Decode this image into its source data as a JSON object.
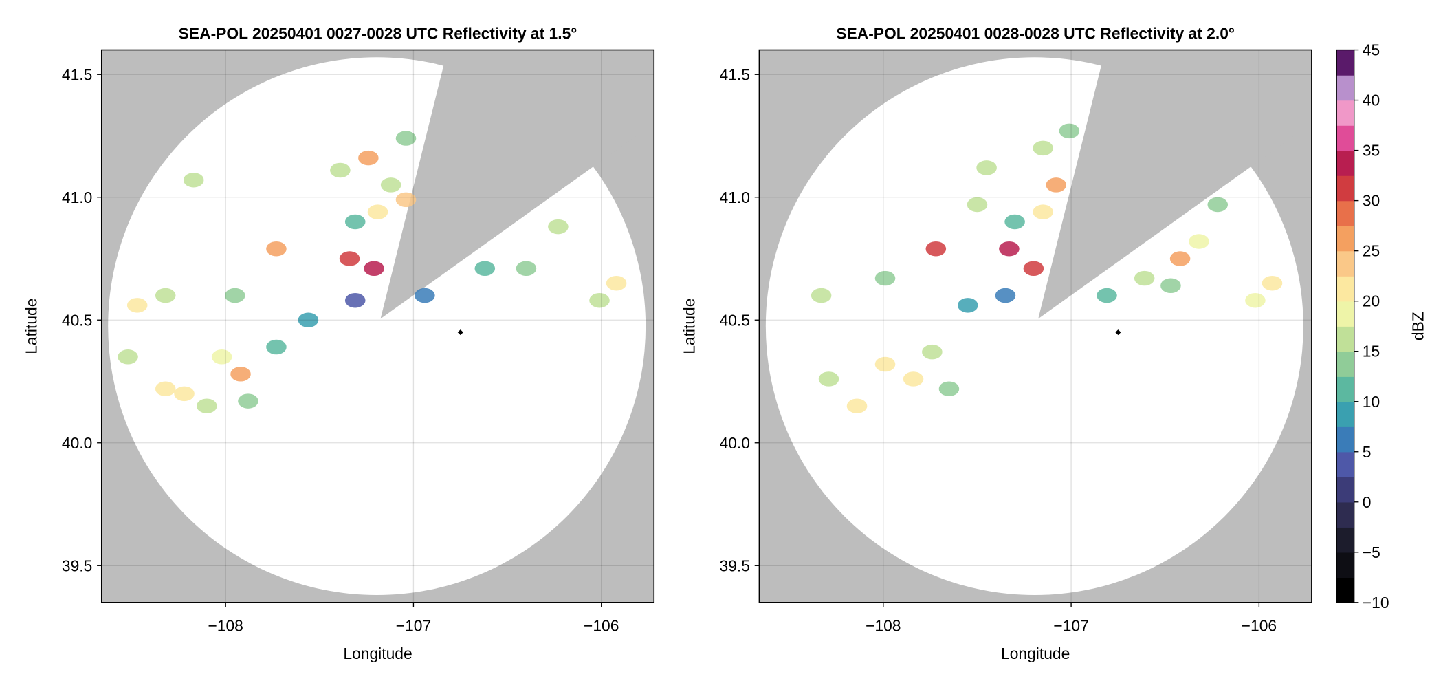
{
  "chart_data": [
    {
      "type": "scatter",
      "title": "SEA-POL 20250401 0027-0028 UTC Reflectivity at 1.5°",
      "xlabel": "Longitude",
      "ylabel": "Latitude",
      "xlim": [
        -108.66,
        -105.72
      ],
      "ylim": [
        39.35,
        41.6
      ],
      "xticks": [
        {
          "value": -108,
          "label": "−108"
        },
        {
          "value": -107,
          "label": "−107"
        },
        {
          "value": -106,
          "label": "−106"
        }
      ],
      "yticks": [
        39.5,
        {
          "value": 40,
          "label": "40.0"
        },
        40.5,
        {
          "value": 41,
          "label": "41.0"
        },
        41.5
      ],
      "grid": true,
      "site": [
        -106.75,
        40.45
      ],
      "x": [
        -108.52,
        -108.32,
        -108.22,
        -108.1,
        -108.02,
        -107.92,
        -107.88,
        -107.73,
        -108.32,
        -108.47,
        -108.17,
        -107.95,
        -107.73,
        -107.56,
        -107.39,
        -107.31,
        -107.24,
        -107.19,
        -107.12,
        -107.04,
        -107.34,
        -107.21,
        -107.31,
        -106.94,
        -106.4,
        -106.23,
        -106.01,
        -105.92,
        -106.62,
        -107.04
      ],
      "y": [
        40.35,
        40.22,
        40.2,
        40.15,
        40.35,
        40.28,
        40.17,
        40.39,
        40.6,
        40.56,
        41.07,
        40.6,
        40.79,
        40.5,
        41.11,
        40.9,
        41.16,
        40.94,
        41.05,
        41.24,
        40.75,
        40.71,
        40.58,
        40.6,
        40.71,
        40.88,
        40.58,
        40.65,
        40.71,
        40.99
      ],
      "values": [
        15,
        22,
        20,
        17,
        18,
        25,
        14,
        12,
        17,
        20,
        15,
        14,
        27,
        8,
        15,
        10,
        25,
        22,
        15,
        14,
        30,
        33,
        3,
        6,
        13,
        15,
        16,
        20,
        10,
        23
      ]
    },
    {
      "type": "scatter",
      "title": "SEA-POL 20250401 0028-0028 UTC Reflectivity at 2.0°",
      "xlabel": "Longitude",
      "ylabel": "Latitude",
      "xlim": [
        -108.66,
        -105.72
      ],
      "ylim": [
        39.35,
        41.6
      ],
      "xticks": [
        {
          "value": -108,
          "label": "−108"
        },
        {
          "value": -107,
          "label": "−107"
        },
        {
          "value": -106,
          "label": "−106"
        }
      ],
      "yticks": [
        39.5,
        {
          "value": 40,
          "label": "40.0"
        },
        40.5,
        {
          "value": 41,
          "label": "41.0"
        },
        41.5
      ],
      "grid": true,
      "site": [
        -106.75,
        40.45
      ],
      "x": [
        -108.29,
        -108.14,
        -107.99,
        -107.84,
        -107.74,
        -107.65,
        -108.33,
        -107.99,
        -107.72,
        -107.5,
        -107.45,
        -107.3,
        -107.33,
        -107.2,
        -107.15,
        -107.08,
        -107.15,
        -107.01,
        -107.35,
        -106.81,
        -106.61,
        -106.42,
        -106.32,
        -106.47,
        -106.22,
        -105.93,
        -106.02,
        -107.55
      ],
      "y": [
        40.26,
        40.15,
        40.32,
        40.26,
        40.37,
        40.22,
        40.6,
        40.67,
        40.79,
        40.97,
        41.12,
        40.9,
        40.79,
        40.71,
        40.94,
        41.05,
        41.2,
        41.27,
        40.6,
        40.6,
        40.67,
        40.75,
        40.82,
        40.64,
        40.97,
        40.65,
        40.58,
        40.56
      ],
      "values": [
        17,
        20,
        22,
        20,
        15,
        14,
        16,
        14,
        30,
        15,
        17,
        10,
        33,
        30,
        20,
        25,
        17,
        14,
        5,
        10,
        16,
        25,
        18,
        13,
        14,
        20,
        18,
        8
      ]
    },
    {
      "type": "colorbar",
      "label": "dBZ",
      "ylim": [
        -10,
        45
      ],
      "yticks": [
        {
          "value": -10,
          "label": "−10"
        },
        {
          "value": -5,
          "label": "−5"
        },
        0,
        5,
        10,
        15,
        20,
        25,
        30,
        35,
        40,
        45
      ],
      "colors": [
        "#000000",
        "#0e0e14",
        "#1c1c2c",
        "#2e2c50",
        "#3c3c78",
        "#4e58a8",
        "#3a7cb8",
        "#3aa0b0",
        "#5cb8a0",
        "#90cc98",
        "#c0e098",
        "#eef4a8",
        "#fce8a0",
        "#fac888",
        "#f4a060",
        "#e8704a",
        "#d03c40",
        "#b81e50",
        "#e04c98",
        "#f098c8",
        "#b890cc",
        "#5a1a6a"
      ]
    }
  ]
}
